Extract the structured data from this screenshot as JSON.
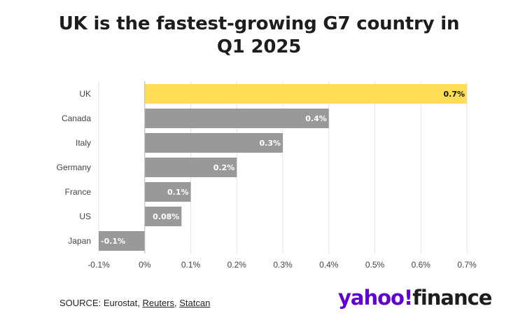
{
  "title": "UK is the fastest-growing G7 country in Q1 2025",
  "footer": {
    "source_prefix": "SOURCE: Eurostat, ",
    "link1": "Reuters",
    "sep": ", ",
    "link2": "Statcan"
  },
  "logo": {
    "part1": "yahoo!",
    "part2": "finance"
  },
  "colors": {
    "highlight": "#FFDD57",
    "bar": "#999999",
    "grid": "#e4e4e4"
  },
  "chart_data": {
    "type": "bar",
    "orientation": "horizontal",
    "categories": [
      "UK",
      "Canada",
      "Italy",
      "Germany",
      "France",
      "US",
      "Japan"
    ],
    "values": [
      0.7,
      0.4,
      0.3,
      0.2,
      0.1,
      0.08,
      -0.1
    ],
    "data_labels": [
      "0.7%",
      "0.4%",
      "0.3%",
      "0.2%",
      "0.1%",
      "0.08%",
      "-0.1%"
    ],
    "highlighted": "UK",
    "xlim": [
      -0.1,
      0.7
    ],
    "xticks": [
      -0.1,
      0,
      0.1,
      0.2,
      0.3,
      0.4,
      0.5,
      0.6,
      0.7
    ],
    "xtick_labels": [
      "-0.1%",
      "0%",
      "0.1%",
      "0.2%",
      "0.3%",
      "0.4%",
      "0.5%",
      "0.6%",
      "0.7%"
    ],
    "grid": true
  }
}
